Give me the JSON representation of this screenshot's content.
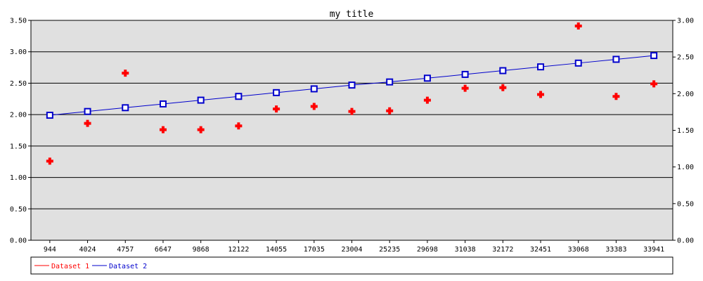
{
  "chart_data": {
    "type": "line",
    "title": "my title",
    "categories": [
      "944",
      "4024",
      "4757",
      "6647",
      "9868",
      "12122",
      "14055",
      "17035",
      "23004",
      "25235",
      "29698",
      "31038",
      "32172",
      "32451",
      "33068",
      "33383",
      "33941"
    ],
    "y_left": {
      "range": [
        0,
        3.5
      ],
      "ticks": [
        "0.00",
        "0.50",
        "1.00",
        "1.50",
        "2.00",
        "2.50",
        "3.00",
        "3.50"
      ]
    },
    "y_right": {
      "range": [
        0,
        3.0
      ],
      "ticks": [
        "0.00",
        "0.50",
        "1.00",
        "1.50",
        "2.00",
        "2.50",
        "3.00"
      ]
    },
    "grid": true,
    "legend_position": "bottom",
    "series": [
      {
        "name": "Dataset 1",
        "color": "#ff0000",
        "style": "points",
        "marker": "cross",
        "axis": "left",
        "values": [
          1.26,
          1.86,
          2.66,
          1.76,
          1.76,
          1.82,
          2.09,
          2.13,
          2.05,
          2.06,
          2.23,
          2.42,
          2.43,
          2.32,
          3.41,
          2.29,
          2.49
        ]
      },
      {
        "name": "Dataset 2",
        "color": "#0000cc",
        "style": "line",
        "marker": "square",
        "axis": "left",
        "values": [
          1.99,
          2.05,
          2.11,
          2.17,
          2.23,
          2.29,
          2.35,
          2.41,
          2.47,
          2.52,
          2.58,
          2.64,
          2.7,
          2.76,
          2.82,
          2.88,
          2.94
        ]
      }
    ]
  }
}
